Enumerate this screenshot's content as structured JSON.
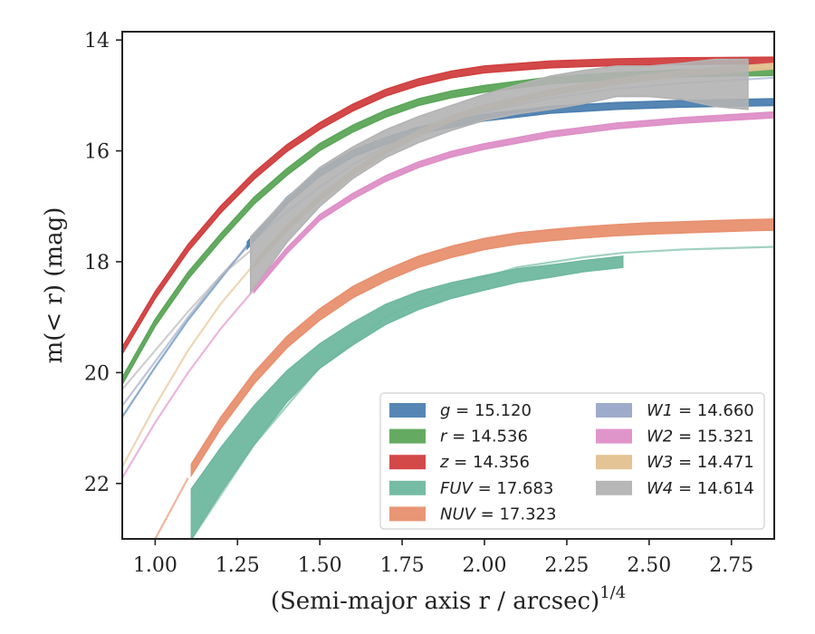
{
  "chart_data": {
    "type": "line",
    "xlabel": "(Semi-major axis r / arcsec)",
    "xlabel_sup": "1/4",
    "ylabel": "m(< r) (mag)",
    "xlim": [
      0.9,
      2.88
    ],
    "ylim": [
      23.0,
      13.85
    ],
    "y_inverted": true,
    "x_ticks": [
      "1.00",
      "1.25",
      "1.50",
      "1.75",
      "2.00",
      "2.25",
      "2.50",
      "2.75"
    ],
    "y_ticks": [
      "14",
      "16",
      "18",
      "20",
      "22"
    ],
    "grid": false,
    "legend_position": "lower-right",
    "series": [
      {
        "key": "g",
        "label": "g = 15.120",
        "color": "#4c7fb0",
        "faint_x": [
          0.9,
          1.0,
          1.1,
          1.2,
          1.28
        ],
        "faint_y": [
          20.8,
          19.9,
          19.05,
          18.3,
          17.7
        ],
        "x": [
          1.28,
          1.4,
          1.5,
          1.6,
          1.7,
          1.8,
          2.0,
          2.2,
          2.4,
          2.6,
          2.88
        ],
        "y": [
          17.7,
          16.9,
          16.4,
          16.05,
          15.82,
          15.63,
          15.4,
          15.26,
          15.19,
          15.15,
          15.12
        ],
        "band": 0.06
      },
      {
        "key": "r",
        "label": "r = 14.536",
        "color": "#5ca659",
        "faint_x": [],
        "faint_y": [],
        "x": [
          0.9,
          1.0,
          1.1,
          1.2,
          1.3,
          1.4,
          1.5,
          1.6,
          1.7,
          1.8,
          1.9,
          2.0,
          2.2,
          2.4,
          2.6,
          2.88
        ],
        "y": [
          20.15,
          19.1,
          18.25,
          17.55,
          16.9,
          16.38,
          15.93,
          15.6,
          15.33,
          15.12,
          14.98,
          14.88,
          14.73,
          14.65,
          14.6,
          14.58
        ],
        "band": 0.06
      },
      {
        "key": "z",
        "label": "z = 14.356",
        "color": "#d13f3f",
        "faint_x": [],
        "faint_y": [],
        "x": [
          0.9,
          1.0,
          1.1,
          1.2,
          1.3,
          1.4,
          1.5,
          1.6,
          1.7,
          1.8,
          1.9,
          2.0,
          2.2,
          2.4,
          2.6,
          2.88
        ],
        "y": [
          19.6,
          18.6,
          17.75,
          17.05,
          16.45,
          15.95,
          15.55,
          15.22,
          14.95,
          14.76,
          14.62,
          14.53,
          14.44,
          14.4,
          14.38,
          14.37
        ],
        "band": 0.06
      },
      {
        "key": "FUV",
        "label": "FUV = 17.683",
        "color": "#6fb8a0",
        "faint_x": [
          0.9,
          1.0,
          1.1,
          1.2,
          1.3,
          1.5,
          1.7,
          1.9,
          2.1,
          2.3,
          2.42,
          2.6,
          2.88
        ],
        "faint_y": [
          24.6,
          23.9,
          23.1,
          22.2,
          21.3,
          19.9,
          19.0,
          18.45,
          18.1,
          17.92,
          17.84,
          17.78,
          17.73
        ],
        "x": [
          1.11,
          1.2,
          1.3,
          1.4,
          1.5,
          1.6,
          1.7,
          1.8,
          1.9,
          2.0,
          2.1,
          2.2,
          2.3,
          2.42
        ],
        "y": [
          22.55,
          21.75,
          20.95,
          20.25,
          19.7,
          19.3,
          18.95,
          18.7,
          18.52,
          18.38,
          18.25,
          18.17,
          18.08,
          18.0
        ],
        "band_lo": [
          0.45,
          0.4,
          0.35,
          0.28,
          0.22,
          0.2,
          0.18,
          0.16,
          0.14,
          0.13,
          0.12,
          0.11,
          0.1,
          0.1
        ],
        "band_hi": [
          0.45,
          0.4,
          0.35,
          0.28,
          0.22,
          0.2,
          0.18,
          0.16,
          0.14,
          0.13,
          0.12,
          0.11,
          0.1,
          0.1
        ]
      },
      {
        "key": "NUV",
        "label": "NUV = 17.323",
        "color": "#e8906f",
        "faint_x": [
          0.9,
          1.0,
          1.1
        ],
        "faint_y": [
          24.2,
          23.0,
          21.9
        ],
        "x": [
          1.11,
          1.2,
          1.3,
          1.4,
          1.5,
          1.6,
          1.7,
          1.8,
          1.9,
          2.0,
          2.1,
          2.2,
          2.3,
          2.4,
          2.5,
          2.6,
          2.7,
          2.8,
          2.88
        ],
        "y": [
          21.75,
          20.9,
          20.1,
          19.45,
          18.95,
          18.55,
          18.25,
          18.0,
          17.82,
          17.68,
          17.58,
          17.52,
          17.47,
          17.43,
          17.4,
          17.38,
          17.36,
          17.34,
          17.33
        ],
        "band": 0.1
      },
      {
        "key": "W1",
        "label": "W1 = 14.660",
        "color": "#9aa6c8",
        "faint_x": [
          0.9,
          1.0,
          1.1,
          1.2,
          1.3,
          1.4,
          1.5,
          1.6,
          1.7,
          1.8,
          2.0,
          2.2,
          2.4,
          2.6,
          2.88
        ],
        "faint_y": [
          20.6,
          19.8,
          19.0,
          18.25,
          17.6,
          17.1,
          16.65,
          16.25,
          15.92,
          15.65,
          15.3,
          15.05,
          14.88,
          14.78,
          14.68
        ],
        "x": [],
        "y": [],
        "band": 0
      },
      {
        "key": "W2",
        "label": "W2 = 15.321",
        "color": "#de8fc7",
        "faint_x": [
          0.9,
          1.0,
          1.1,
          1.2,
          1.3
        ],
        "faint_y": [
          21.9,
          20.9,
          20.0,
          19.2,
          18.5
        ],
        "x": [
          1.3,
          1.4,
          1.5,
          1.6,
          1.7,
          1.8,
          1.9,
          2.0,
          2.2,
          2.4,
          2.6,
          2.88
        ],
        "y": [
          18.5,
          17.8,
          17.2,
          16.82,
          16.5,
          16.25,
          16.06,
          15.92,
          15.7,
          15.55,
          15.45,
          15.35
        ],
        "band": 0.05
      },
      {
        "key": "W3",
        "label": "W3 = 14.471",
        "color": "#e3c08f",
        "faint_x": [
          0.9,
          1.0,
          1.1,
          1.2,
          1.3
        ],
        "faint_y": [
          21.7,
          20.6,
          19.6,
          18.75,
          18.05
        ],
        "x": [
          1.3,
          1.4,
          1.5,
          1.6,
          1.7,
          1.8,
          1.9,
          2.0,
          2.2,
          2.4,
          2.6,
          2.88
        ],
        "y": [
          18.05,
          17.4,
          16.85,
          16.4,
          16.0,
          15.68,
          15.42,
          15.22,
          14.95,
          14.75,
          14.6,
          14.47
        ],
        "band": 0.05
      },
      {
        "key": "W4",
        "label": "W4 = 14.614",
        "color": "#b3b3b3",
        "faint_x": [
          0.9,
          1.0,
          1.1,
          1.2,
          1.29
        ],
        "faint_y": [
          20.3,
          19.6,
          18.9,
          18.25,
          17.8
        ],
        "x": [
          1.29,
          1.4,
          1.5,
          1.6,
          1.7,
          1.8,
          1.9,
          2.0,
          2.1,
          2.2,
          2.3,
          2.4,
          2.5,
          2.6,
          2.7,
          2.8
        ],
        "y": [
          17.8,
          17.1,
          16.55,
          16.15,
          15.82,
          15.58,
          15.38,
          15.2,
          15.03,
          14.9,
          14.8,
          14.72,
          14.72,
          14.72,
          14.75,
          14.8
        ],
        "band_lo": [
          0.75,
          0.55,
          0.45,
          0.35,
          0.3,
          0.27,
          0.25,
          0.25,
          0.3,
          0.35,
          0.35,
          0.3,
          0.3,
          0.35,
          0.45,
          0.45
        ],
        "band_hi": [
          0.25,
          0.25,
          0.25,
          0.22,
          0.2,
          0.2,
          0.2,
          0.22,
          0.22,
          0.25,
          0.25,
          0.25,
          0.25,
          0.3,
          0.4,
          0.45
        ]
      }
    ],
    "legend_columns": [
      [
        "g",
        "r",
        "z",
        "FUV",
        "NUV"
      ],
      [
        "W1",
        "W2",
        "W3",
        "W4"
      ]
    ]
  }
}
